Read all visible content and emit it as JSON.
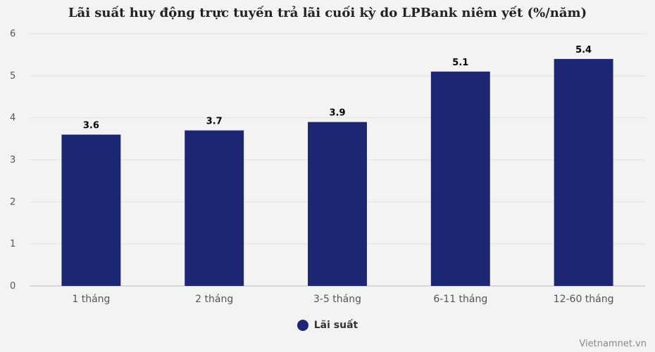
{
  "title": "Lãi suất huy động trực tuyến trả lãi cuối kỳ do LPBank niêm yết (%/năm)",
  "watermark": "Vietnamnet.vn",
  "colors": {
    "bar": "#1c2672",
    "grid": "#e2e2e2",
    "axis": "#c9cfe2",
    "background": "#f3f3f3"
  },
  "chart_data": {
    "type": "bar",
    "categories": [
      "1 tháng",
      "2 tháng",
      "3-5 tháng",
      "6-11 tháng",
      "12-60 tháng"
    ],
    "series": [
      {
        "name": "Lãi suất",
        "values": [
          3.6,
          3.7,
          3.9,
          5.1,
          5.4
        ]
      }
    ],
    "ylim": [
      0,
      6
    ],
    "yticks": [
      0,
      1,
      2,
      3,
      4,
      5,
      6
    ],
    "grid": true,
    "legend": "bottom-center"
  }
}
